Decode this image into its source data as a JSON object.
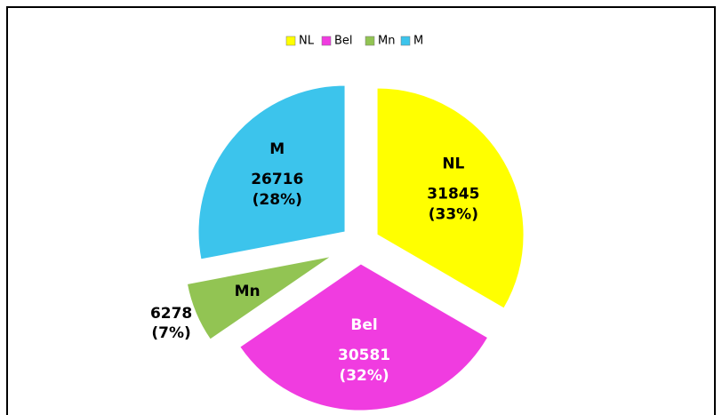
{
  "chart_data": {
    "type": "pie",
    "categories": [
      "NL",
      "Bel",
      "Mn",
      "M"
    ],
    "values": [
      31845,
      30581,
      6278,
      26716
    ],
    "percents": [
      33,
      32,
      7,
      28
    ],
    "percent_labels": [
      "(33%)",
      "(32%)",
      "(7%)",
      "(28%)"
    ],
    "colors": [
      "#ffff00",
      "#f03ce0",
      "#92c453",
      "#3cc4ec"
    ],
    "legend": "top"
  }
}
